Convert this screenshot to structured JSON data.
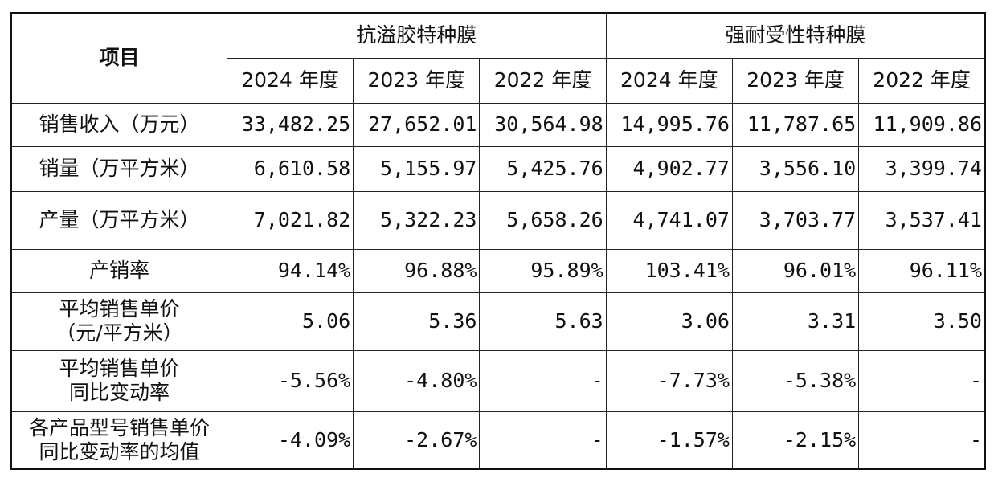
{
  "header": {
    "item_label": "项目",
    "group1": "抗溢胶特种膜",
    "group2": "强耐受性特种膜",
    "years": [
      "2024 年度",
      "2023 年度",
      "2022 年度",
      "2024 年度",
      "2023 年度",
      "2022 年度"
    ]
  },
  "rows": [
    {
      "label_lines": [
        "销售收入（万元）"
      ],
      "values": [
        "33,482.25",
        "27,652.01",
        "30,564.98",
        "14,995.76",
        "11,787.65",
        "11,909.86"
      ]
    },
    {
      "label_lines": [
        "销量（万平方米）"
      ],
      "values": [
        "6,610.58",
        "5,155.97",
        "5,425.76",
        "4,902.77",
        "3,556.10",
        "3,399.74"
      ]
    },
    {
      "label_lines": [
        "产量（万平方米）"
      ],
      "values": [
        "7,021.82",
        "5,322.23",
        "5,658.26",
        "4,741.07",
        "3,703.77",
        "3,537.41"
      ]
    },
    {
      "label_lines": [
        "产销率"
      ],
      "values": [
        "94.14%",
        "96.88%",
        "95.89%",
        "103.41%",
        "96.01%",
        "96.11%"
      ]
    },
    {
      "label_lines": [
        "平均销售单价",
        "（元/平方米）"
      ],
      "values": [
        "5.06",
        "5.36",
        "5.63",
        "3.06",
        "3.31",
        "3.50"
      ]
    },
    {
      "label_lines": [
        "平均销售单价",
        "同比变动率"
      ],
      "values": [
        "-5.56%",
        "-4.80%",
        "-",
        "-7.73%",
        "-5.38%",
        "-"
      ]
    },
    {
      "label_lines": [
        "各产品型号销售单价",
        "同比变动率的均值"
      ],
      "values": [
        "-4.09%",
        "-2.67%",
        "-",
        "-1.57%",
        "-2.15%",
        "-"
      ]
    }
  ]
}
